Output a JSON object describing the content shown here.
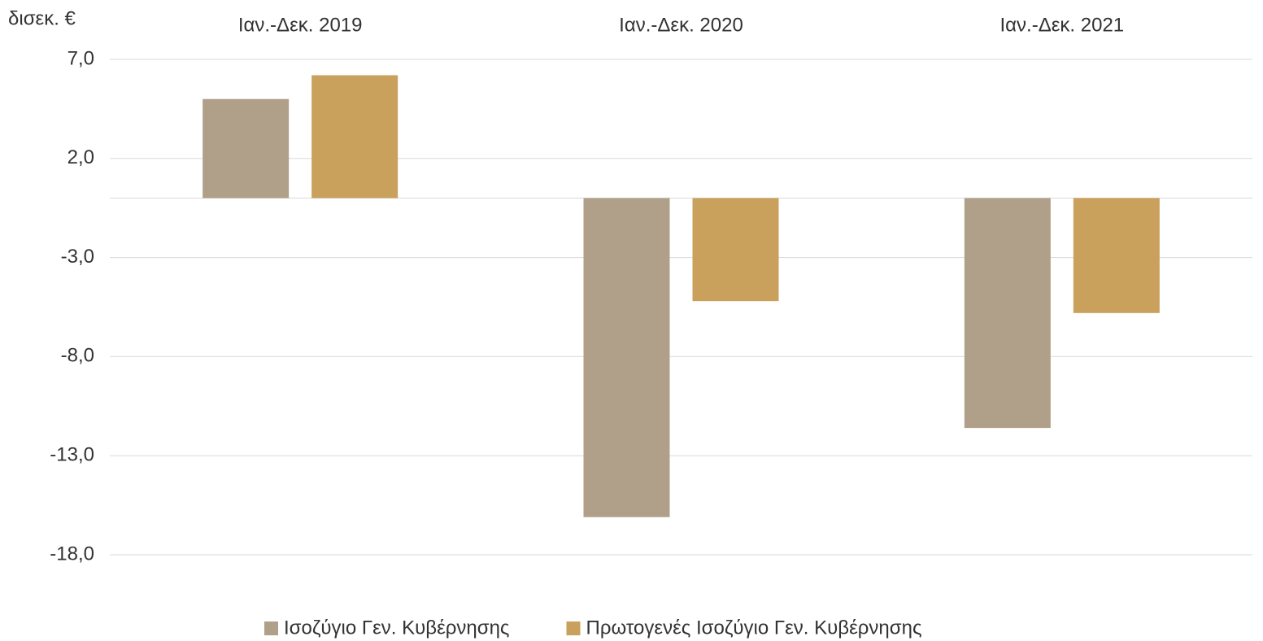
{
  "chart_data": {
    "type": "bar",
    "y_label": "δισεκ. €",
    "categories": [
      "Ιαν.-Δεκ. 2019",
      "Ιαν.-Δεκ. 2020",
      "Ιαν.-Δεκ. 2021"
    ],
    "series": [
      {
        "name": "Ισοζύγιο Γεν. Κυβέρνησης",
        "color": "#b0a08a",
        "values": [
          5.0,
          -16.1,
          -11.6
        ]
      },
      {
        "name": "Πρωτογενές Ισοζύγιο Γεν. Κυβέρνησης",
        "color": "#c9a05c",
        "values": [
          6.2,
          -5.2,
          -5.8
        ]
      }
    ],
    "ylim": [
      -18,
      7
    ],
    "yticks": [
      {
        "value": 7,
        "label": "7,0"
      },
      {
        "value": 2,
        "label": "2,0"
      },
      {
        "value": -3,
        "label": "-3,0"
      },
      {
        "value": -8,
        "label": "-8,0"
      },
      {
        "value": -13,
        "label": "-13,0"
      },
      {
        "value": -18,
        "label": "-18,0"
      }
    ],
    "grid": true,
    "legend": "bottom"
  }
}
